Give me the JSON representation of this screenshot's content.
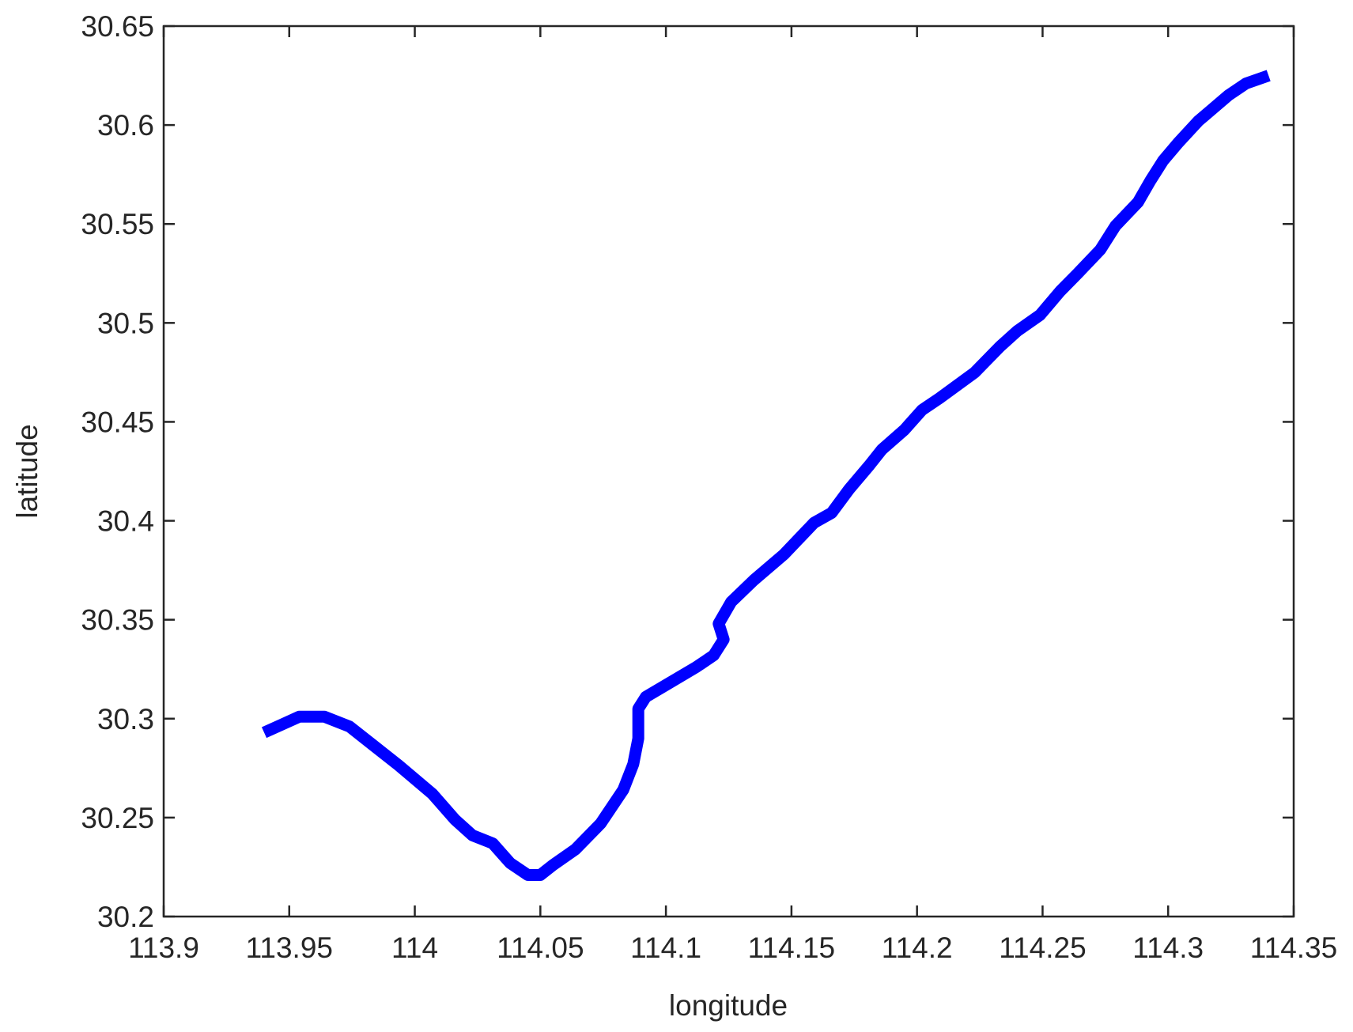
{
  "chart_data": {
    "type": "line",
    "x_label": "longitude",
    "y_label": "latitude",
    "x": [
      113.94,
      113.947,
      113.954,
      113.964,
      113.974,
      113.983,
      113.993,
      114.007,
      114.016,
      114.023,
      114.031,
      114.038,
      114.045,
      114.05,
      114.055,
      114.064,
      114.074,
      114.083,
      114.087,
      114.089,
      114.089,
      114.092,
      114.1,
      114.112,
      114.119,
      114.123,
      114.121,
      114.126,
      114.135,
      114.147,
      114.159,
      114.166,
      114.173,
      114.181,
      114.186,
      114.195,
      114.202,
      114.209,
      114.223,
      114.233,
      114.24,
      114.249,
      114.257,
      114.264,
      114.273,
      114.279,
      114.288,
      114.293,
      114.298,
      114.304,
      114.312,
      114.324,
      114.331,
      114.34
    ],
    "series": [
      {
        "color": "#0000ff",
        "values": [
          30.293,
          30.297,
          30.301,
          30.301,
          30.296,
          30.287,
          30.277,
          30.262,
          30.249,
          30.241,
          30.237,
          30.227,
          30.221,
          30.221,
          30.226,
          30.234,
          30.247,
          30.264,
          30.277,
          30.29,
          30.305,
          30.311,
          30.317,
          30.326,
          30.332,
          30.34,
          30.348,
          30.359,
          30.37,
          30.383,
          30.399,
          30.404,
          30.416,
          30.428,
          30.436,
          30.446,
          30.456,
          30.462,
          30.475,
          30.488,
          30.496,
          30.504,
          30.516,
          30.525,
          30.537,
          30.549,
          30.561,
          30.572,
          30.582,
          30.591,
          30.602,
          30.615,
          30.621,
          30.625
        ]
      }
    ],
    "xlim": [
      113.9,
      114.35
    ],
    "xticks": [
      113.9,
      113.95,
      114,
      114.05,
      114.1,
      114.15,
      114.2,
      114.25,
      114.3,
      114.35
    ],
    "ylim": [
      30.2,
      30.65
    ],
    "yticks": [
      30.2,
      30.25,
      30.3,
      30.35,
      30.4,
      30.45,
      30.5,
      30.55,
      30.6,
      30.65
    ],
    "grid": false
  }
}
